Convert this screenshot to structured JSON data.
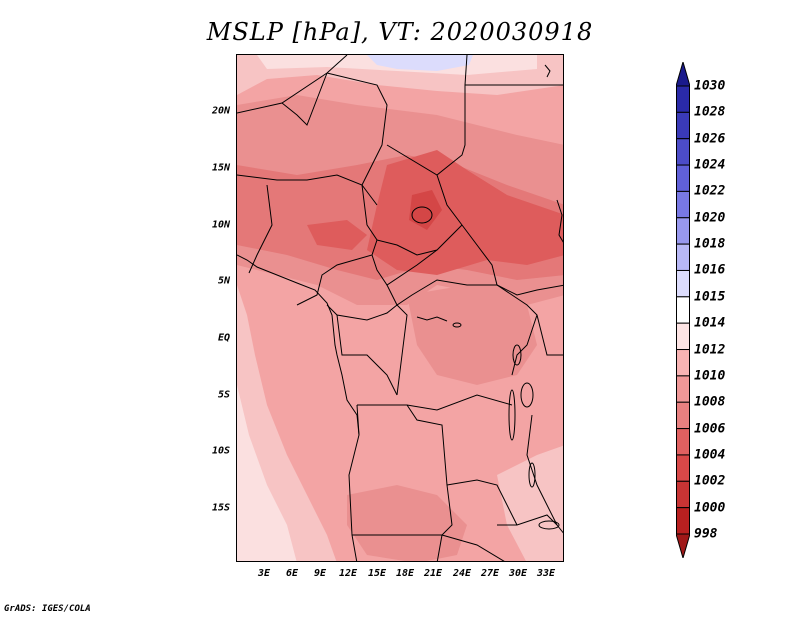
{
  "title": "MSLP [hPa], VT: 2020030918",
  "footer": "GrADS: IGES/COLA",
  "map": {
    "lat_labels": [
      "20N",
      "15N",
      "10N",
      "5N",
      "EQ",
      "5S",
      "10S",
      "15S"
    ],
    "lon_labels": [
      "3E",
      "6E",
      "9E",
      "12E",
      "15E",
      "18E",
      "21E",
      "24E",
      "27E",
      "30E",
      "33E"
    ]
  },
  "colorbar": {
    "levels": [
      "1030",
      "1028",
      "1026",
      "1024",
      "1022",
      "1020",
      "1018",
      "1016",
      "1015",
      "1014",
      "1012",
      "1010",
      "1008",
      "1006",
      "1004",
      "1002",
      "1000",
      "998"
    ],
    "colors": [
      "#1a1a8c",
      "#2a2aa8",
      "#3a3ab8",
      "#4c4cc8",
      "#6060d8",
      "#7878e4",
      "#9898ee",
      "#b8b8f6",
      "#dcdcfc",
      "#ffffff",
      "#fde4e4",
      "#f8b4b4",
      "#f09898",
      "#e88080",
      "#e06060",
      "#d84848",
      "#c83434",
      "#b82020",
      "#a01818"
    ]
  }
}
